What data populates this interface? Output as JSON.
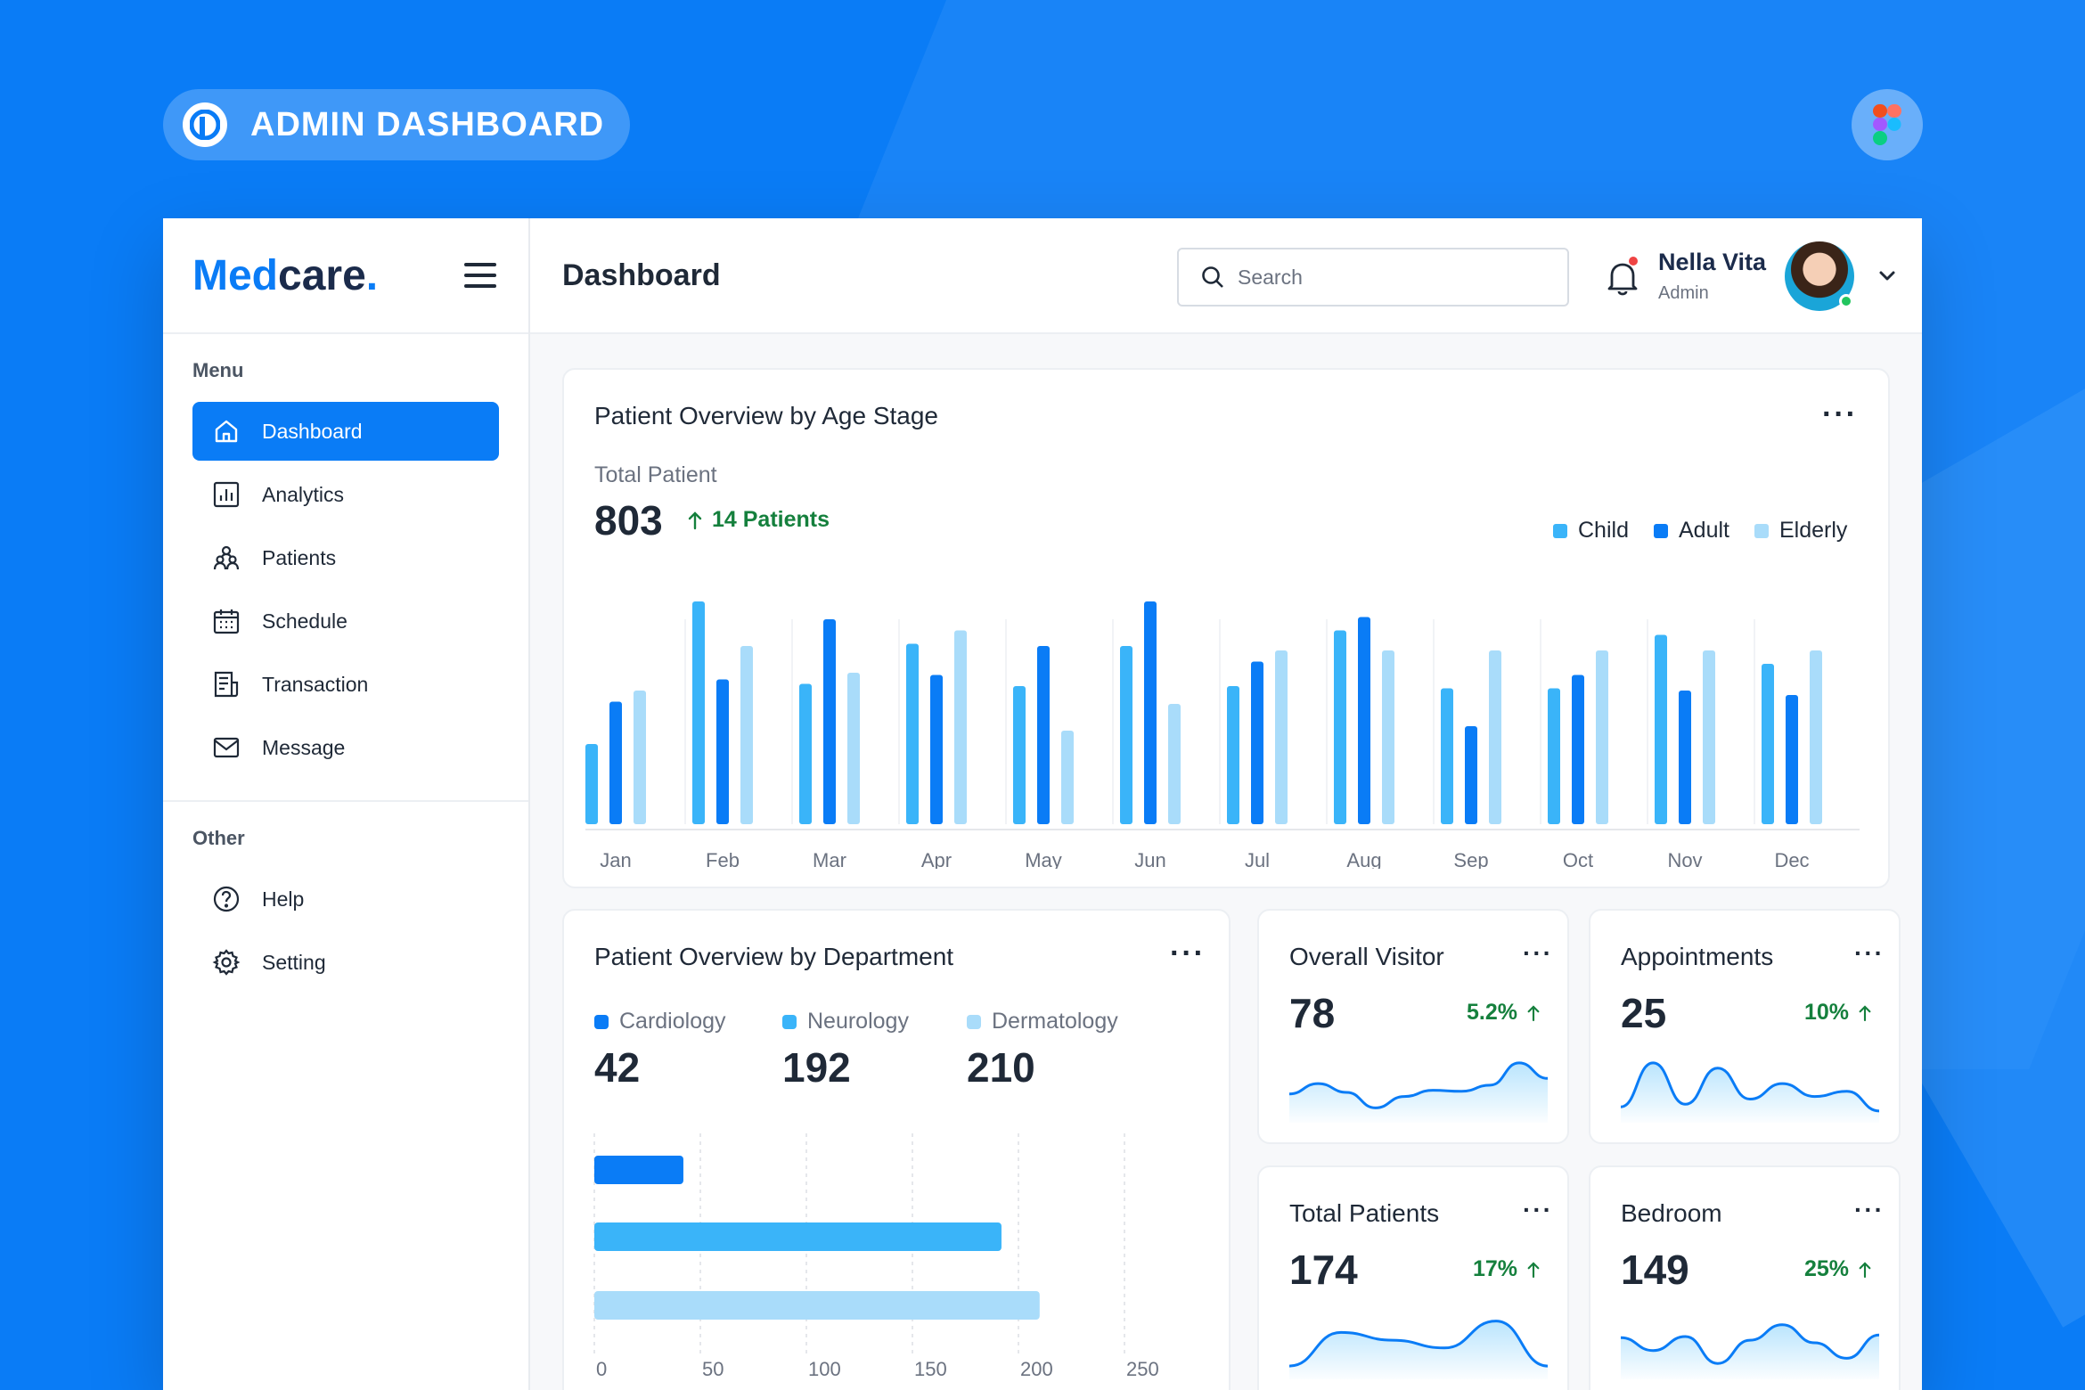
{
  "banner": {
    "title": "ADMIN DASHBOARD",
    "logo_icon": "p-logo-icon",
    "figma_icon": "figma-icon"
  },
  "colors": {
    "primary": "#0a7cf6",
    "child": "#3ab4f9",
    "adult": "#0a7cf6",
    "elderly": "#a9dcfa",
    "positive": "#15803d"
  },
  "sidebar": {
    "logo_med": "Med",
    "logo_care": "care",
    "logo_dot": ".",
    "menu_label": "Menu",
    "menu_items": [
      {
        "label": "Dashboard",
        "icon": "home-icon",
        "active": true
      },
      {
        "label": "Analytics",
        "icon": "bar-chart-icon"
      },
      {
        "label": "Patients",
        "icon": "people-icon"
      },
      {
        "label": "Schedule",
        "icon": "calendar-icon"
      },
      {
        "label": "Transaction",
        "icon": "receipt-icon"
      },
      {
        "label": "Message",
        "icon": "mail-icon"
      }
    ],
    "other_label": "Other",
    "other_items": [
      {
        "label": "Help",
        "icon": "help-icon"
      },
      {
        "label": "Setting",
        "icon": "gear-icon"
      }
    ]
  },
  "topbar": {
    "title": "Dashboard",
    "search_placeholder": "Search",
    "user_name": "Nella Vita",
    "user_role": "Admin"
  },
  "age_card": {
    "title": "Patient Overview by Age Stage",
    "total_label": "Total Patient",
    "total_value": "803",
    "trend": "14 Patients"
  },
  "dept_card": {
    "title": "Patient Overview by Department",
    "items": [
      {
        "label": "Cardiology",
        "value": "42"
      },
      {
        "label": "Neurology",
        "value": "192"
      },
      {
        "label": "Dermatology",
        "value": "210"
      }
    ]
  },
  "stats": [
    {
      "title": "Overall Visitor",
      "value": "78",
      "change": "5.2%"
    },
    {
      "title": "Appointments",
      "value": "25",
      "change": "10%"
    },
    {
      "title": "Total Patients",
      "value": "174",
      "change": "17%"
    },
    {
      "title": "Bedroom",
      "value": "149",
      "change": "25%"
    }
  ],
  "chart_data": [
    {
      "type": "bar",
      "categories": [
        "Jan",
        "Feb",
        "Mar",
        "Apr",
        "May",
        "Jun",
        "Jul",
        "Aug",
        "Sep",
        "Oct",
        "Nov",
        "Dec"
      ],
      "series": [
        {
          "name": "Child",
          "values": [
            36,
            100,
            63,
            81,
            62,
            80,
            62,
            87,
            61,
            61,
            85,
            72
          ]
        },
        {
          "name": "Adult",
          "values": [
            55,
            65,
            92,
            67,
            80,
            100,
            73,
            93,
            44,
            67,
            60,
            58
          ]
        },
        {
          "name": "Elderly",
          "values": [
            60,
            80,
            68,
            87,
            42,
            54,
            78,
            78,
            78,
            78,
            78,
            78
          ]
        }
      ],
      "legend_position": "top-right"
    },
    {
      "type": "bar",
      "orientation": "horizontal",
      "categories": [
        "Cardiology",
        "Neurology",
        "Dermatology"
      ],
      "values": [
        42,
        192,
        210
      ],
      "xlim": [
        0,
        250
      ],
      "x_ticks": [
        "0",
        "50",
        "100",
        "150",
        "200",
        "250"
      ]
    }
  ],
  "sparklines": [
    [
      0.35,
      0.55,
      0.38,
      0.08,
      0.3,
      0.42,
      0.4,
      0.52,
      0.95,
      0.65
    ],
    [
      0.1,
      0.95,
      0.15,
      0.85,
      0.25,
      0.55,
      0.3,
      0.4,
      0.02
    ],
    [
      0.05,
      0.7,
      0.55,
      0.4,
      0.92,
      0.05
    ],
    [
      0.6,
      0.35,
      0.62,
      0.1,
      0.55,
      0.85,
      0.5,
      0.2,
      0.65
    ]
  ]
}
